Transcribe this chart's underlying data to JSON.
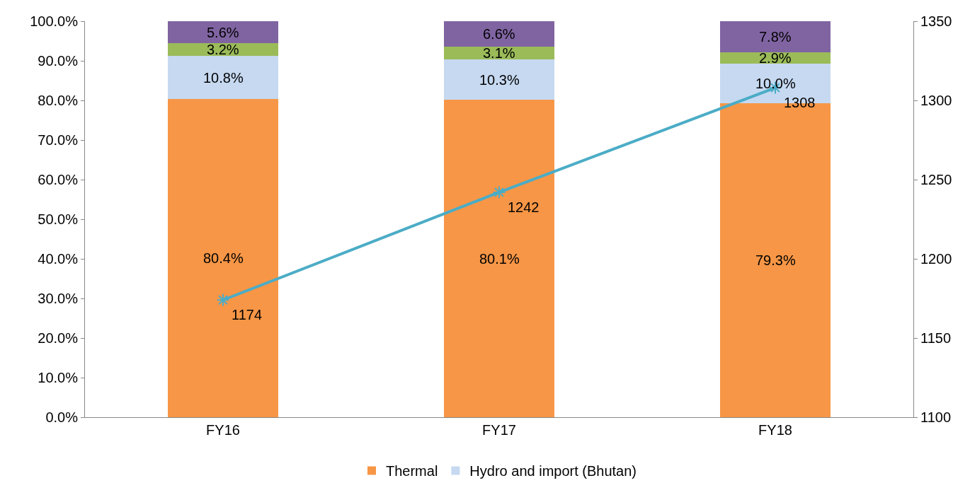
{
  "chart_data": {
    "type": "bar",
    "stacked": true,
    "categories": [
      "FY16",
      "FY17",
      "FY18"
    ],
    "series": [
      {
        "name": "Thermal",
        "color": "#f79646",
        "values": [
          80.4,
          80.1,
          79.3
        ],
        "value_labels": [
          "80.4%",
          "80.1%",
          "79.3%"
        ]
      },
      {
        "name": "Hydro and import (Bhutan)",
        "color": "#c6d9f1",
        "values": [
          10.8,
          10.3,
          10.0
        ],
        "value_labels": [
          "10.8%",
          "10.3%",
          "10.0%"
        ]
      },
      {
        "color": "#9bbb59",
        "values": [
          3.2,
          3.1,
          2.9
        ],
        "value_labels": [
          "3.2%",
          "3.1%",
          "2.9%"
        ]
      },
      {
        "color": "#8064a2",
        "values": [
          5.6,
          6.6,
          7.8
        ],
        "value_labels": [
          "5.6%",
          "6.6%",
          "7.8%"
        ]
      },
      {
        "type": "line",
        "axis": "y2",
        "color": "#4bacc6",
        "marker": "cross",
        "values": [
          1174,
          1242,
          1308
        ],
        "value_labels": [
          "1174",
          "1242",
          "1308"
        ]
      }
    ],
    "ylim": [
      0,
      100
    ],
    "yticks": [
      {
        "value": 0,
        "label": "0.0%"
      },
      {
        "value": 10,
        "label": "10.0%"
      },
      {
        "value": 20,
        "label": "20.0%"
      },
      {
        "value": 30,
        "label": "30.0%"
      },
      {
        "value": 40,
        "label": "40.0%"
      },
      {
        "value": 50,
        "label": "50.0%"
      },
      {
        "value": 60,
        "label": "60.0%"
      },
      {
        "value": 70,
        "label": "70.0%"
      },
      {
        "value": 80,
        "label": "80.0%"
      },
      {
        "value": 90,
        "label": "90.0%"
      },
      {
        "value": 100,
        "label": "100.0%"
      }
    ],
    "y2lim": [
      1100,
      1350
    ],
    "y2ticks": [
      1100,
      1150,
      1200,
      1250,
      1300,
      1350
    ],
    "legend": "bottom"
  }
}
